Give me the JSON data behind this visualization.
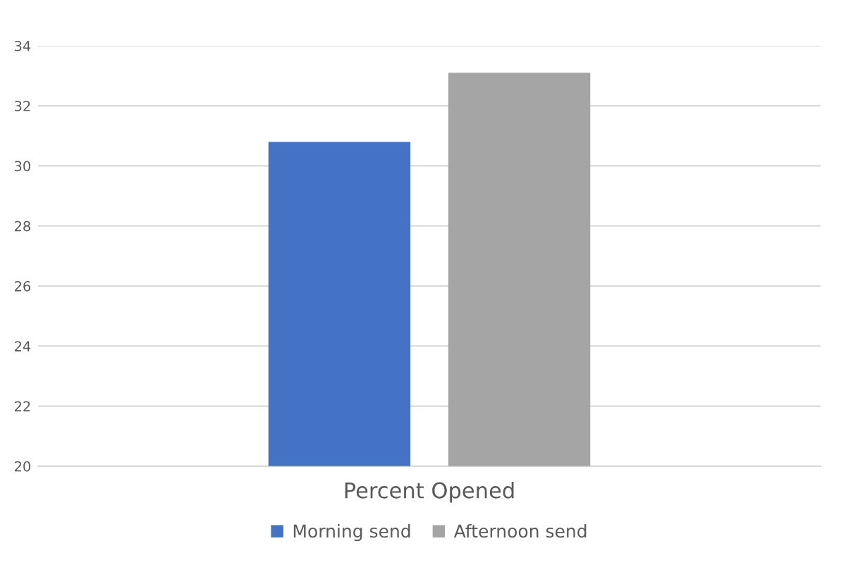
{
  "chart_data": {
    "type": "bar",
    "categories": [
      "Percent Opened"
    ],
    "series": [
      {
        "name": "Morning send",
        "color": "#4472c4",
        "values": [
          30.8
        ]
      },
      {
        "name": "Afternoon send",
        "color": "#a5a5a5",
        "values": [
          33.1
        ]
      }
    ],
    "ylim": [
      20,
      34
    ],
    "yticks": [
      20,
      22,
      24,
      26,
      28,
      30,
      32,
      34
    ],
    "grid": "y",
    "legend": "bottom"
  }
}
